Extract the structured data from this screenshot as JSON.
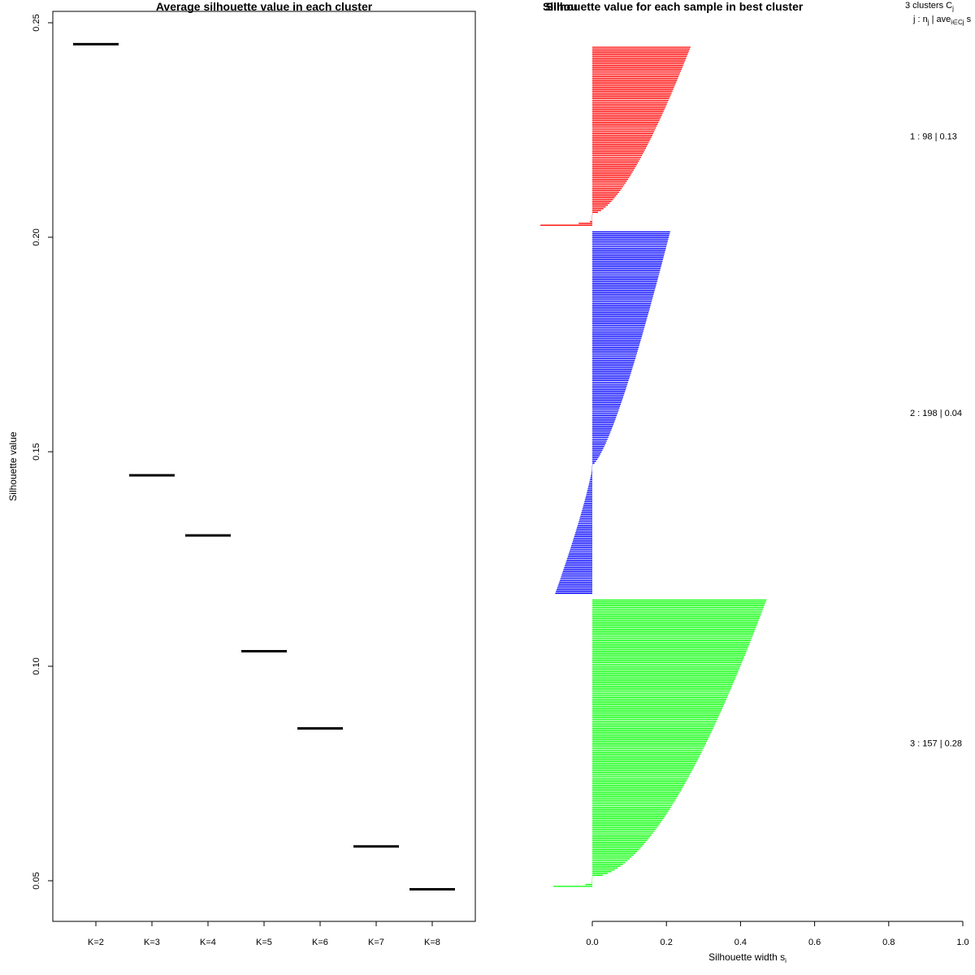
{
  "chart_data": [
    {
      "type": "line",
      "title": "Average silhouette value in each cluster",
      "xlabel": "",
      "ylabel": "Silhouette value",
      "categories": [
        "K=2",
        "K=3",
        "K=4",
        "K=5",
        "K=6",
        "K=7",
        "K=8"
      ],
      "values": [
        0.245,
        0.1445,
        0.1305,
        0.1035,
        0.0855,
        0.058,
        0.048
      ],
      "yticks": [
        0.05,
        0.1,
        0.15,
        0.2,
        0.25
      ],
      "ytick_labels": [
        "0.05",
        "0.10",
        "0.15",
        "0.20",
        "0.25"
      ],
      "ylim": [
        0.041,
        0.254
      ],
      "grid": false
    },
    {
      "type": "bar",
      "orientation": "horizontal",
      "title": "Silhouette value for each sample in best cluster",
      "title_overlap": "Silhou",
      "xlabel": "Silhouette width s",
      "xlabel_sub": "i",
      "xlim": [
        0,
        1
      ],
      "xticks": [
        0.0,
        0.2,
        0.4,
        0.6,
        0.8,
        1.0
      ],
      "xtick_labels": [
        "0.0",
        "0.2",
        "0.4",
        "0.6",
        "0.8",
        "1.0"
      ],
      "legend_header": {
        "line1": "3  clusters  C",
        "line1_sub": "j",
        "line2": "j :  n",
        "line2_sub1": "j",
        "line2_mid": " | ave",
        "line2_sub2": "i∈Cj",
        "line2_end": "  s"
      },
      "clusters": [
        {
          "name": "1",
          "n": 98,
          "avg": 0.13,
          "label": "1 :   98  |  0.13",
          "color": "#ff0000",
          "max_width": 0.265,
          "min_width": -0.14,
          "positive_count": 92,
          "negative_count": 6,
          "shape": 0.62
        },
        {
          "name": "2",
          "n": 198,
          "avg": 0.04,
          "label": "2 :   198  |  0.04",
          "color": "#0000ff",
          "max_width": 0.21,
          "min_width": -0.1,
          "positive_count": 128,
          "negative_count": 70,
          "shape": 0.72
        },
        {
          "name": "3",
          "n": 157,
          "avg": 0.28,
          "label": "3 :   157  |  0.28",
          "color": "#00ff00",
          "max_width": 0.47,
          "min_width": -0.105,
          "positive_count": 152,
          "negative_count": 5,
          "shape": 0.55
        }
      ]
    }
  ]
}
